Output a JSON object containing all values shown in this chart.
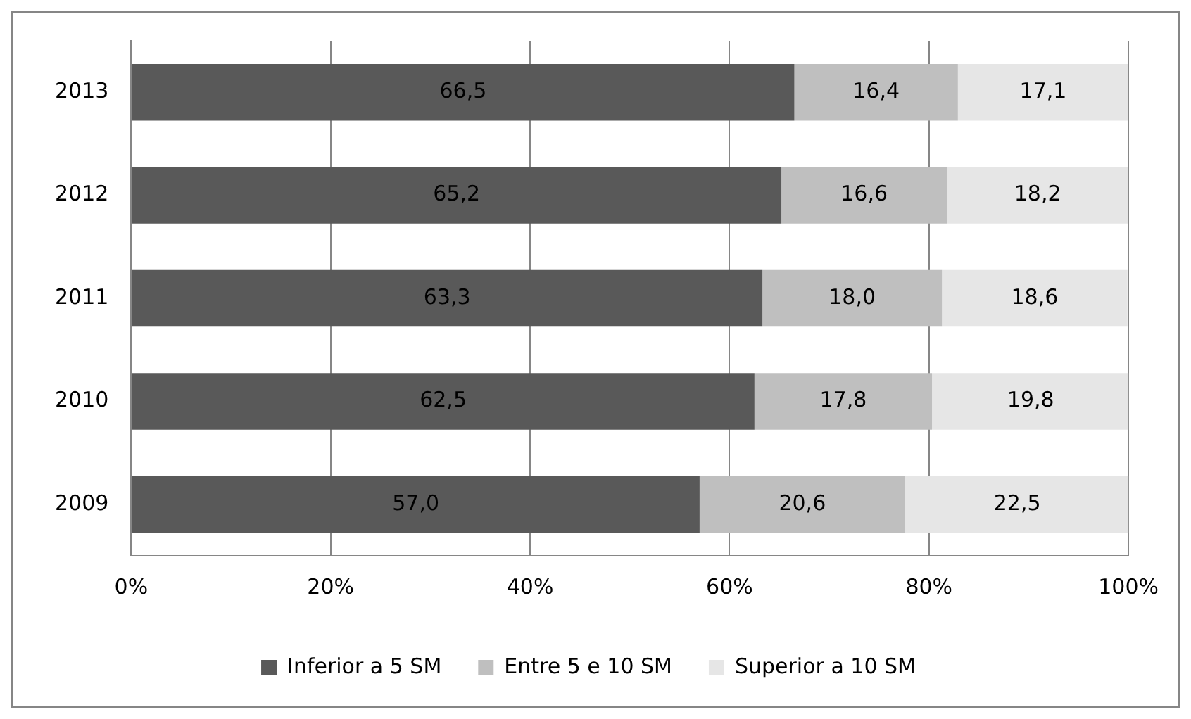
{
  "chart_data": {
    "type": "bar",
    "orientation": "horizontal",
    "stacked": true,
    "categories": [
      "2013",
      "2012",
      "2011",
      "2010",
      "2009"
    ],
    "series": [
      {
        "name": "Inferior a 5 SM",
        "color": "#595959",
        "values": [
          66.5,
          65.2,
          63.3,
          62.5,
          57.0
        ],
        "value_labels": [
          "66,5",
          "65,2",
          "63,3",
          "62,5",
          "57,0"
        ]
      },
      {
        "name": "Entre 5 e 10 SM",
        "color": "#bfbfbf",
        "values": [
          16.4,
          16.6,
          18.0,
          17.8,
          20.6
        ],
        "value_labels": [
          "16,4",
          "16,6",
          "18,0",
          "17,8",
          "20,6"
        ]
      },
      {
        "name": "Superior a 10 SM",
        "color": "#e6e6e6",
        "values": [
          17.1,
          18.2,
          18.6,
          19.8,
          22.5
        ],
        "value_labels": [
          "17,1",
          "18,2",
          "18,6",
          "19,8",
          "22,5"
        ]
      }
    ],
    "xlim": [
      0,
      100
    ],
    "xticks": [
      {
        "value": 0,
        "label": "0%"
      },
      {
        "value": 20,
        "label": "20%"
      },
      {
        "value": 40,
        "label": "40%"
      },
      {
        "value": 60,
        "label": "60%"
      },
      {
        "value": 80,
        "label": "80%"
      },
      {
        "value": 100,
        "label": "100%"
      }
    ],
    "grid": "x",
    "legend": "bottom"
  }
}
